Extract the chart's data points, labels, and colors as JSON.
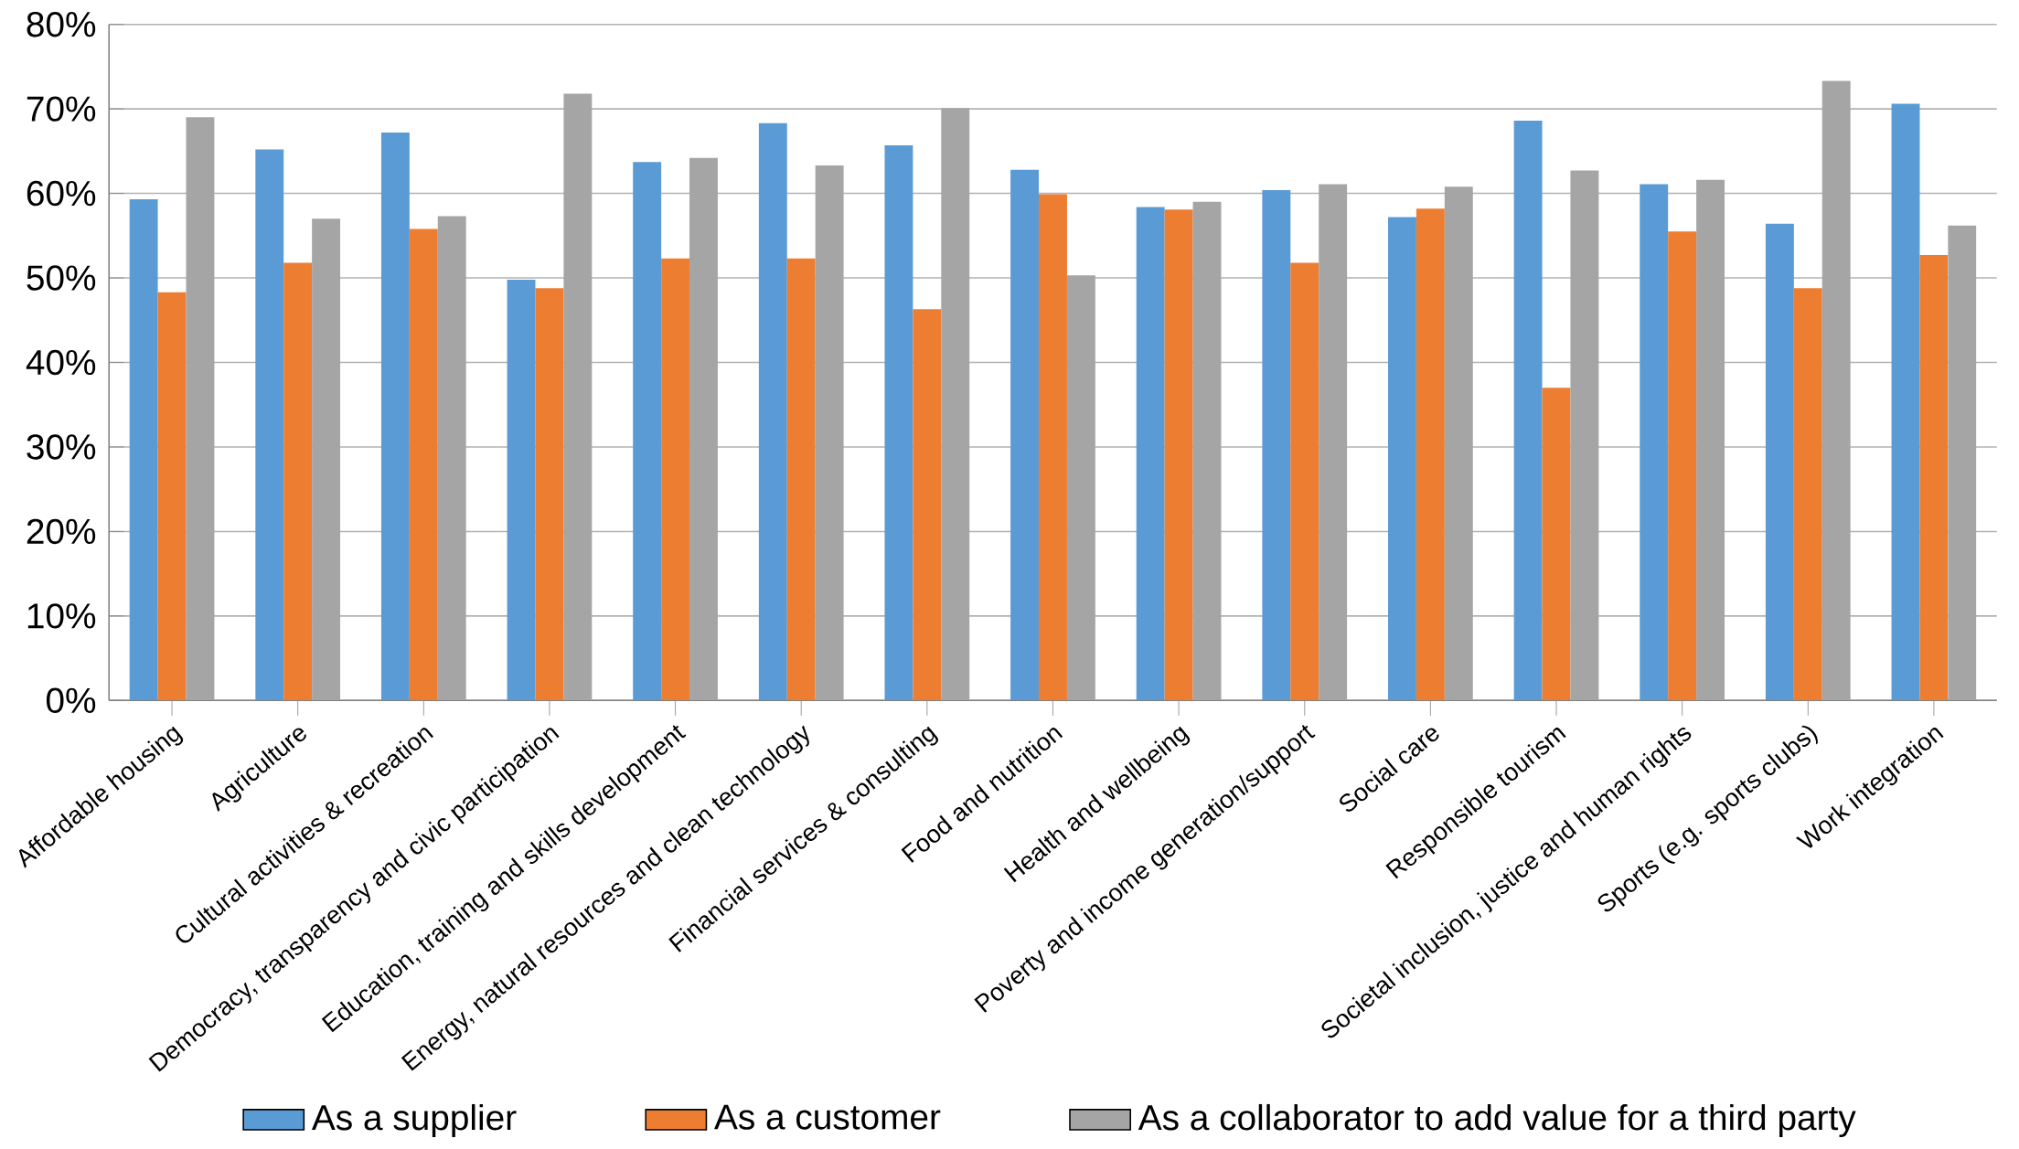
{
  "chart_data": {
    "type": "bar",
    "categories": [
      "Affordable housing",
      "Agriculture",
      "Cultural activities & recreation",
      "Democracy, transparency and civic participation",
      "Education, training and skills development",
      "Energy, natural resources and clean technology",
      "Financial services & consulting",
      "Food and nutrition",
      "Health and wellbeing",
      "Poverty and income generation/support",
      "Social care",
      "Responsible tourism",
      "Societal inclusion, justice and human rights",
      "Sports (e.g. sports clubs)",
      "Work integration"
    ],
    "series": [
      {
        "name": "As a supplier",
        "color": "#5b9bd5",
        "values": [
          59.3,
          65.2,
          67.2,
          49.8,
          63.7,
          68.3,
          65.7,
          62.8,
          58.4,
          60.4,
          57.2,
          68.6,
          61.1,
          56.4,
          70.6
        ]
      },
      {
        "name": "As a customer",
        "color": "#ed7d31",
        "values": [
          48.3,
          51.8,
          55.8,
          48.8,
          52.3,
          52.3,
          46.3,
          59.9,
          58.1,
          51.8,
          58.2,
          37.0,
          55.5,
          48.8,
          52.7
        ]
      },
      {
        "name": "As a collaborator to add value for a third party",
        "color": "#a5a5a5",
        "values": [
          69.0,
          57.0,
          57.3,
          71.8,
          64.2,
          63.3,
          70.1,
          50.3,
          59.0,
          61.1,
          60.8,
          62.7,
          61.6,
          73.3,
          56.2
        ]
      }
    ],
    "ylim": [
      0,
      80
    ],
    "yticks": [
      {
        "value": 0,
        "label": "0%"
      },
      {
        "value": 10,
        "label": "10%"
      },
      {
        "value": 20,
        "label": "20%"
      },
      {
        "value": 30,
        "label": "30%"
      },
      {
        "value": 40,
        "label": "40%"
      },
      {
        "value": 50,
        "label": "50%"
      },
      {
        "value": 60,
        "label": "60%"
      },
      {
        "value": 70,
        "label": "70%"
      },
      {
        "value": 80,
        "label": "80%"
      }
    ],
    "grid": "y",
    "legend": "bottom"
  }
}
